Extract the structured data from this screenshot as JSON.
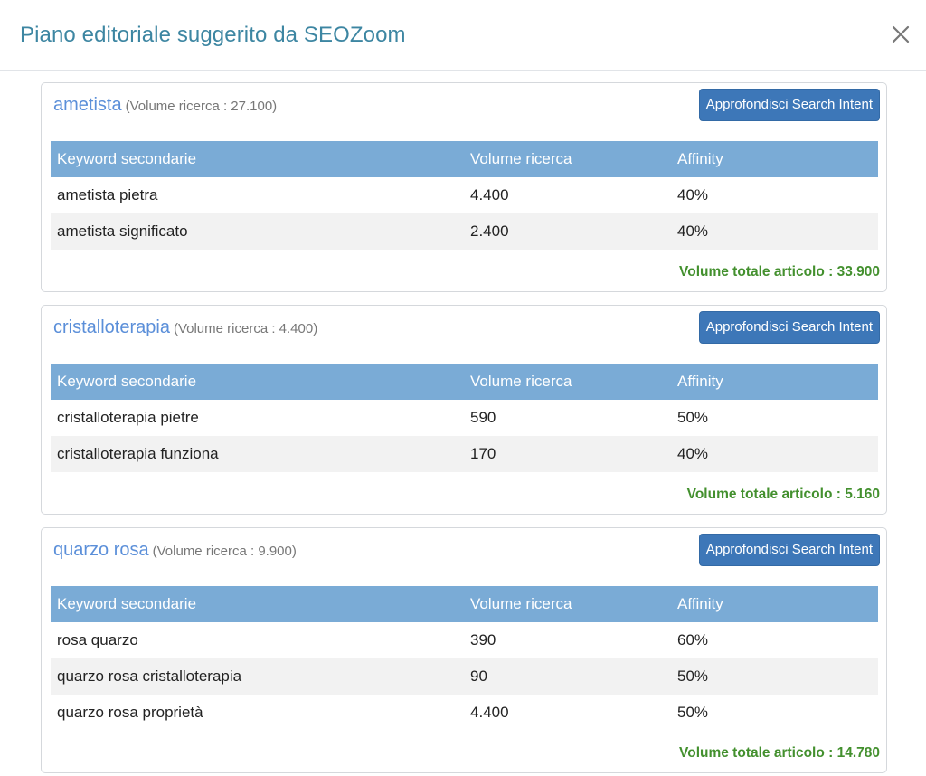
{
  "modal": {
    "title": "Piano editoriale suggerito da SEOZoom",
    "close_icon": "close-icon"
  },
  "table_headers": [
    "Keyword secondarie",
    "Volume ricerca",
    "Affinity"
  ],
  "cards": [
    {
      "keyword": "ametista",
      "volume_note": "(Volume ricerca : 27.100)",
      "button_label": "Approfondisci Search Intent",
      "rows": [
        [
          "ametista pietra",
          "4.400",
          "40%"
        ],
        [
          "ametista significato",
          "2.400",
          "40%"
        ]
      ],
      "total": "Volume totale articolo : 33.900"
    },
    {
      "keyword": "cristalloterapia",
      "volume_note": "(Volume ricerca : 4.400)",
      "button_label": "Approfondisci Search Intent",
      "rows": [
        [
          "cristalloterapia pietre",
          "590",
          "50%"
        ],
        [
          "cristalloterapia funziona",
          "170",
          "40%"
        ]
      ],
      "total": "Volume totale articolo : 5.160"
    },
    {
      "keyword": "quarzo rosa",
      "volume_note": "(Volume ricerca : 9.900)",
      "button_label": "Approfondisci Search Intent",
      "rows": [
        [
          "rosa quarzo",
          "390",
          "60%"
        ],
        [
          "quarzo rosa cristalloterapia",
          "90",
          "50%"
        ],
        [
          "quarzo rosa proprietà",
          "4.400",
          "50%"
        ]
      ],
      "total": "Volume totale articolo : 14.780"
    }
  ],
  "colors": {
    "title": "#3d86a2",
    "keyword": "#5b8fd9",
    "button": "#3d77b8",
    "table_header": "#7aabd6",
    "total": "#43902e",
    "row_alt": "#f2f2f2"
  }
}
